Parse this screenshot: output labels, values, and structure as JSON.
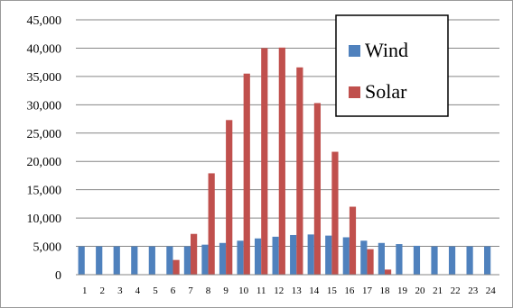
{
  "chart_data": {
    "type": "bar",
    "title": "",
    "xlabel": "",
    "ylabel": "",
    "ylim": [
      0,
      45000
    ],
    "yticks": [
      "0",
      "5,000",
      "10,000",
      "15,000",
      "20,000",
      "25,000",
      "30,000",
      "35,000",
      "40,000",
      "45,000"
    ],
    "categories": [
      "1",
      "2",
      "3",
      "4",
      "5",
      "6",
      "7",
      "8",
      "9",
      "10",
      "11",
      "12",
      "13",
      "14",
      "15",
      "16",
      "17",
      "18",
      "19",
      "20",
      "21",
      "22",
      "23",
      "24"
    ],
    "grid": true,
    "legend_position": "top-right",
    "series": [
      {
        "name": "Wind",
        "color": "#4f81bd",
        "values": [
          5000,
          5000,
          5000,
          5000,
          5000,
          5000,
          5000,
          5300,
          5600,
          6000,
          6400,
          6700,
          7000,
          7100,
          6900,
          6600,
          6000,
          5600,
          5400,
          5100,
          5000,
          5000,
          5000,
          5000
        ]
      },
      {
        "name": "Solar",
        "color": "#c0504d",
        "values": [
          0,
          0,
          0,
          0,
          0,
          2600,
          7200,
          17900,
          27300,
          35500,
          40000,
          40100,
          36600,
          30300,
          21700,
          12000,
          4500,
          900,
          0,
          0,
          0,
          0,
          0,
          0
        ]
      }
    ]
  }
}
